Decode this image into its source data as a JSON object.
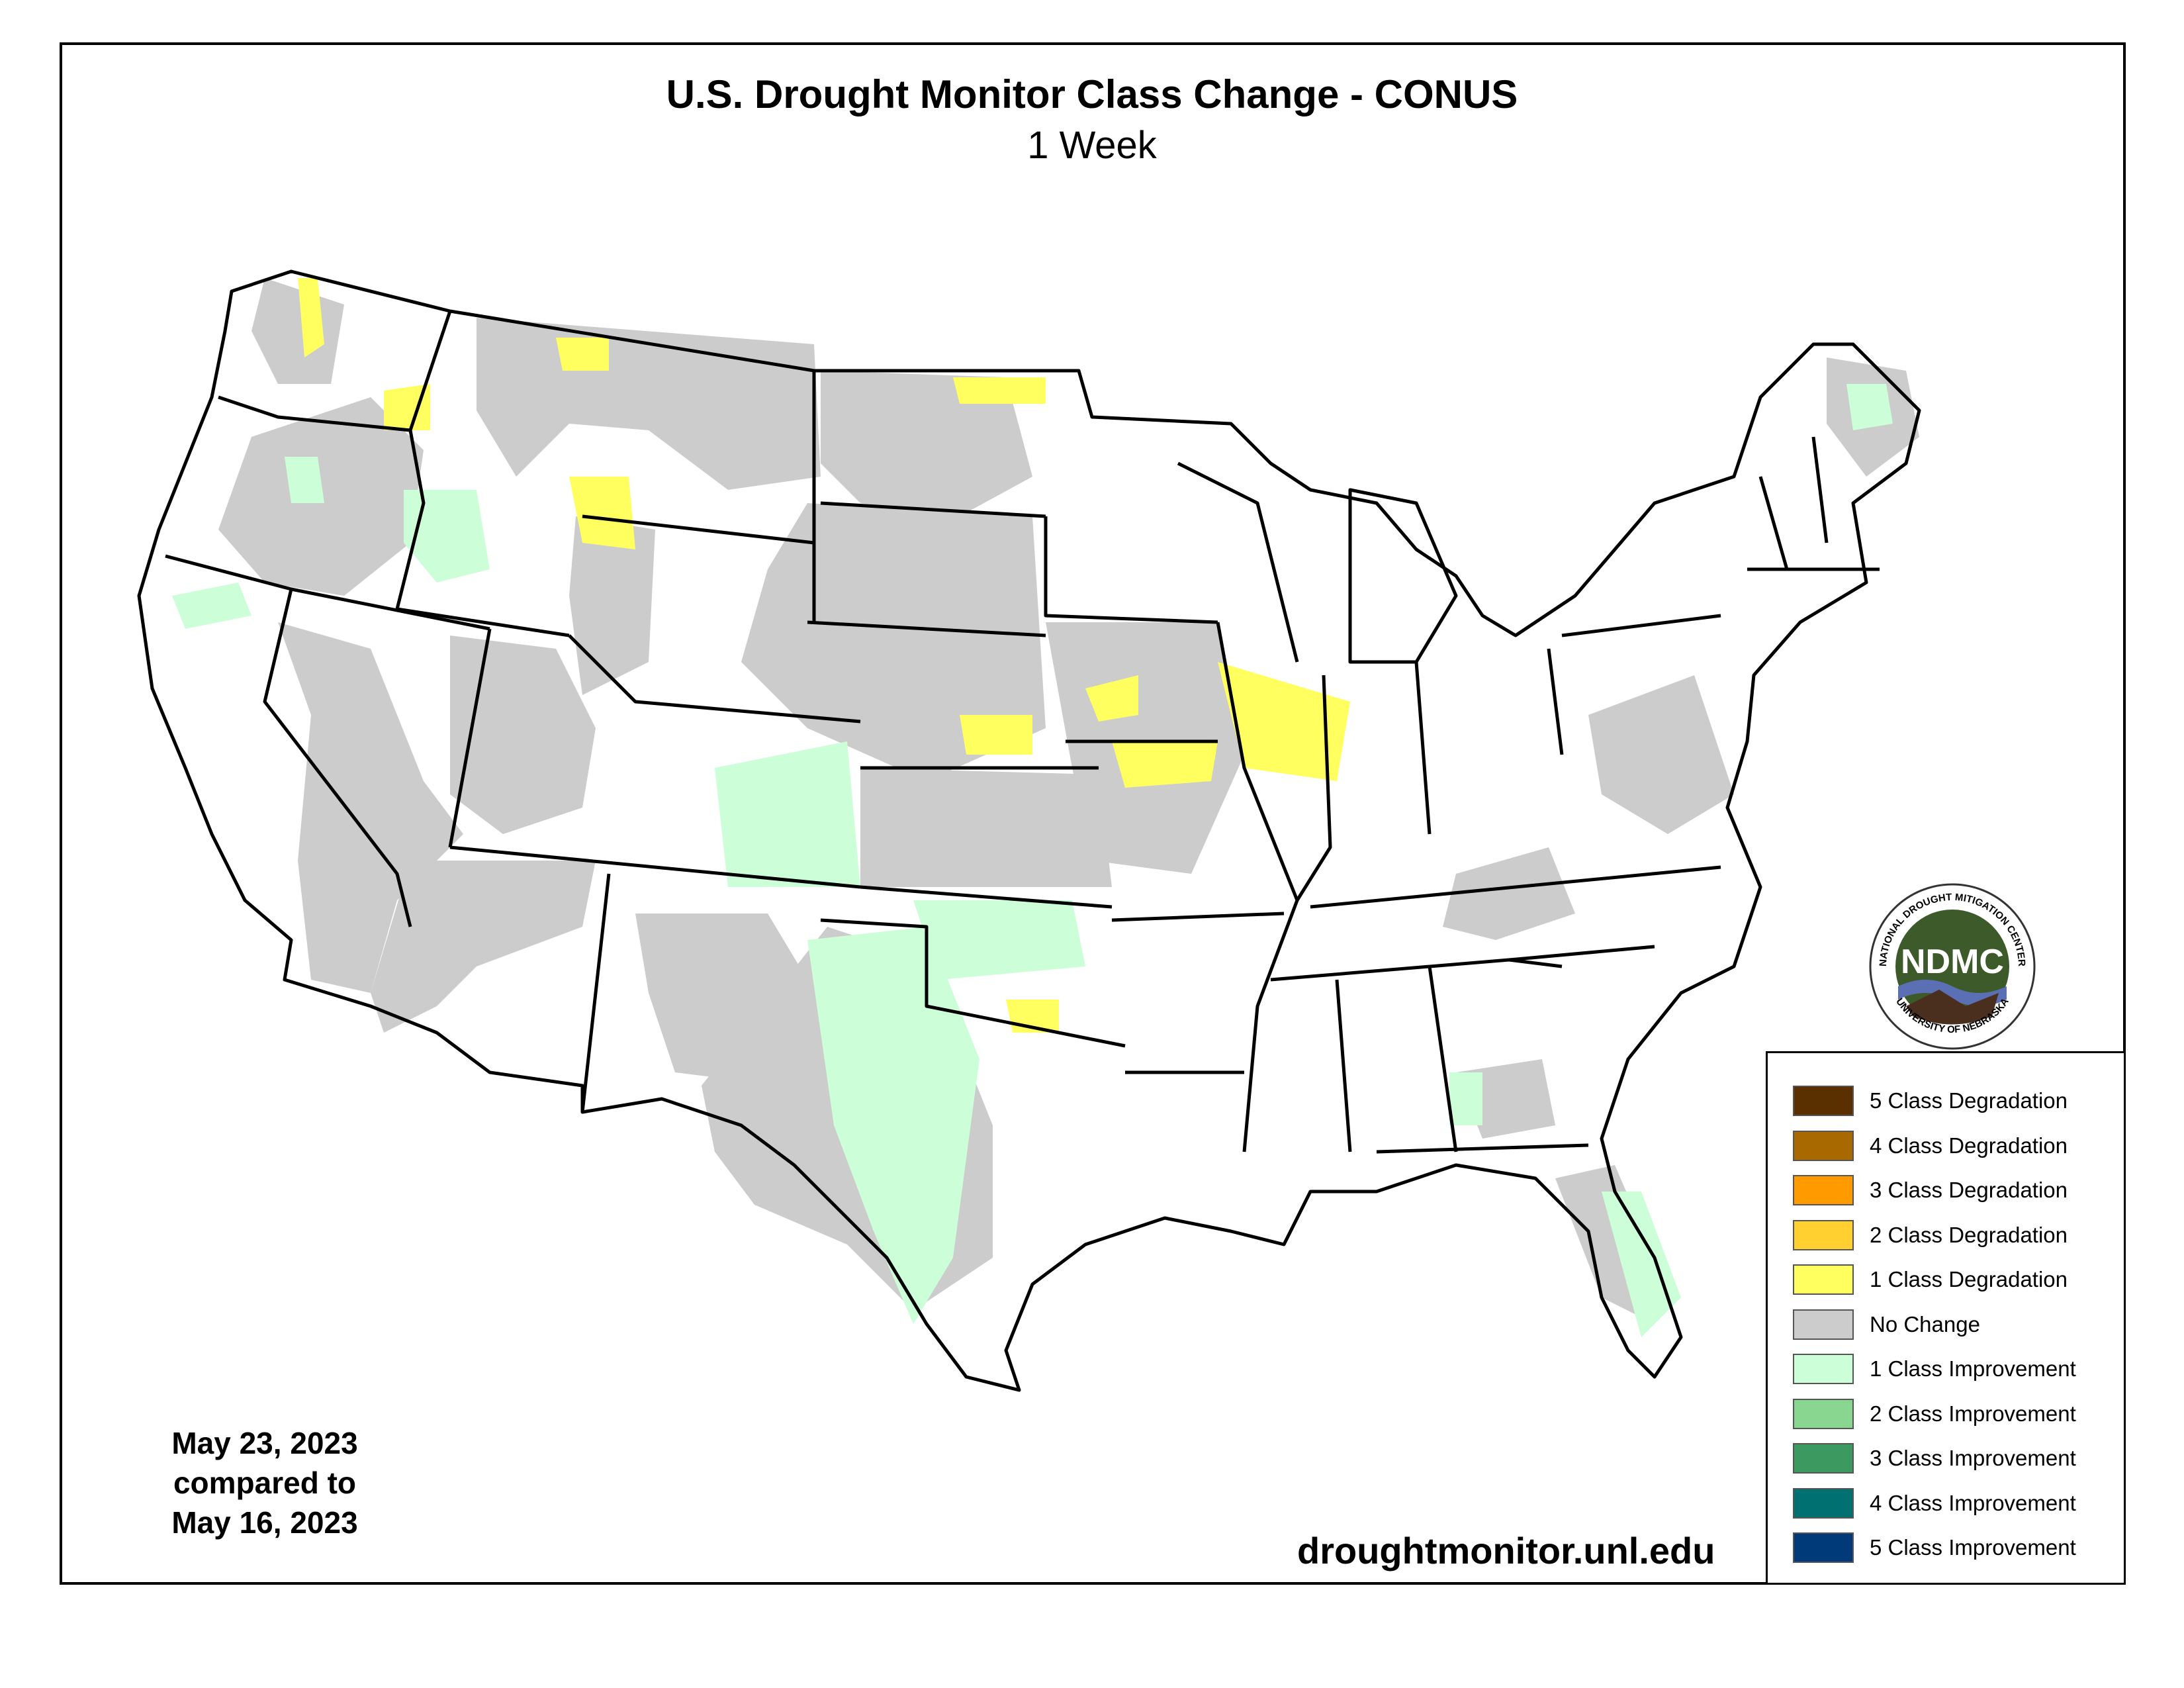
{
  "map": {
    "title": "U.S. Drought Monitor Class Change - CONUS",
    "subtitle": "1 Week",
    "date_line_1": "May 23, 2023",
    "date_line_2": "compared to",
    "date_line_3": "May 16, 2023",
    "website": "droughtmonitor.unl.edu"
  },
  "logo": {
    "abbr": "NDMC",
    "ring_text_top": "NATIONAL DROUGHT MITIGATION CENTER",
    "ring_text_bottom": "UNIVERSITY OF NEBRASKA",
    "colors": {
      "disc": "#3d5a2a",
      "water": "#5b6fb5",
      "land": "#4a2f1f"
    }
  },
  "legend": {
    "items": [
      {
        "label": "5 Class Degradation",
        "color": "#5a3000"
      },
      {
        "label": "4 Class Degradation",
        "color": "#a86a00"
      },
      {
        "label": "3 Class Degradation",
        "color": "#ff9a00"
      },
      {
        "label": "2 Class Degradation",
        "color": "#ffd030"
      },
      {
        "label": "1 Class Degradation",
        "color": "#ffff60"
      },
      {
        "label": "No Change",
        "color": "#cccccc"
      },
      {
        "label": "1 Class Improvement",
        "color": "#ccffd8"
      },
      {
        "label": "2 Class Improvement",
        "color": "#88d690"
      },
      {
        "label": "3 Class Improvement",
        "color": "#3c9a60"
      },
      {
        "label": "4 Class Improvement",
        "color": "#007070"
      },
      {
        "label": "5 Class Improvement",
        "color": "#003a78"
      }
    ]
  },
  "colors": {
    "no_change": "#cccccc",
    "improvement_1": "#ccffd8",
    "degradation_1": "#ffff60",
    "border": "#000000"
  }
}
